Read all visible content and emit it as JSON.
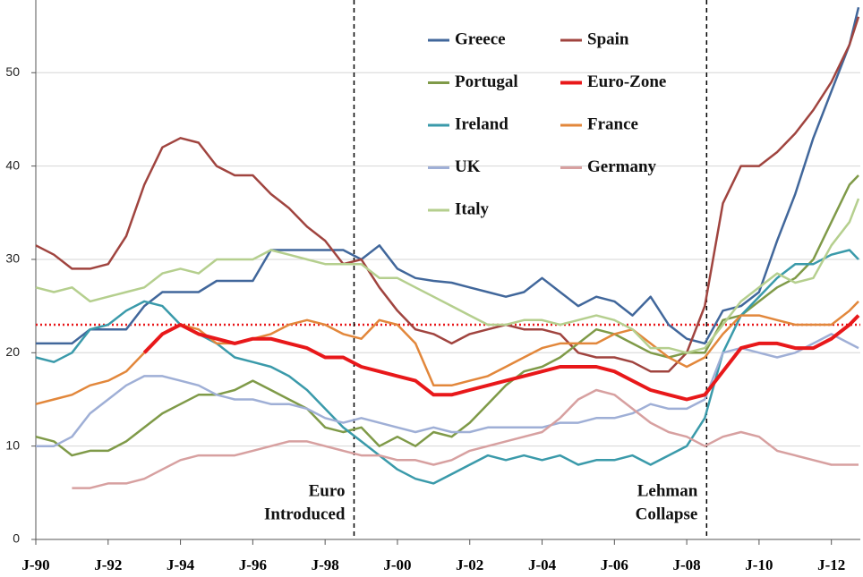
{
  "chart_data": {
    "type": "line",
    "x": [
      1990,
      1990.5,
      1991,
      1991.5,
      1992,
      1992.5,
      1993,
      1993.5,
      1994,
      1994.5,
      1995,
      1995.5,
      1996,
      1996.5,
      1997,
      1997.5,
      1998,
      1998.5,
      1999,
      1999.5,
      2000,
      2000.5,
      2001,
      2001.5,
      2002,
      2002.5,
      2003,
      2003.5,
      2004,
      2004.5,
      2005,
      2005.5,
      2006,
      2006.5,
      2007,
      2007.5,
      2008,
      2008.5,
      2009,
      2009.5,
      2010,
      2010.5,
      2011,
      2011.5,
      2012,
      2012.5,
      2012.75
    ],
    "series": [
      {
        "name": "Greece",
        "color": "#41679b",
        "values": [
          21,
          21,
          21,
          22.5,
          22.5,
          22.5,
          25,
          26.5,
          26.5,
          26.5,
          27.7,
          27.7,
          27.7,
          31,
          31,
          31,
          31,
          31,
          30,
          31.5,
          29,
          28,
          27.7,
          27.5,
          27,
          26.5,
          26,
          26.5,
          28,
          26.5,
          25,
          26,
          25.5,
          24,
          26,
          23,
          21.5,
          21,
          24.5,
          25,
          26.5,
          32,
          37,
          43,
          48,
          53,
          57
        ]
      },
      {
        "name": "Spain",
        "color": "#a0443f",
        "values": [
          31.5,
          30.5,
          29,
          29,
          29.5,
          32.5,
          38,
          42,
          43,
          42.5,
          40,
          39,
          39,
          37,
          35.5,
          33.5,
          32,
          29.5,
          30,
          27,
          24.5,
          22.5,
          22,
          21,
          22,
          22.5,
          23,
          22.5,
          22.5,
          22,
          20,
          19.5,
          19.5,
          19,
          18,
          18,
          20,
          25,
          36,
          40,
          40,
          41.5,
          43.5,
          46,
          49,
          53,
          56
        ]
      },
      {
        "name": "Portugal",
        "color": "#7f9a48",
        "values": [
          11,
          10.5,
          9,
          9.5,
          9.5,
          10.5,
          12,
          13.5,
          14.5,
          15.5,
          15.5,
          16,
          17,
          16,
          15,
          14,
          12,
          11.5,
          12,
          10,
          11,
          10,
          11.5,
          11,
          12.5,
          14.5,
          16.5,
          18,
          18.5,
          19.5,
          21,
          22.5,
          22,
          21,
          20,
          19.5,
          20,
          20,
          23.5,
          24,
          25.5,
          27,
          28,
          30,
          34,
          38,
          39
        ]
      },
      {
        "name": "Euro-Zone",
        "color": "#e8181a",
        "values": [
          null,
          null,
          null,
          null,
          null,
          null,
          20,
          22,
          23,
          22,
          21.5,
          21,
          21.5,
          21.5,
          21,
          20.5,
          19.5,
          19.5,
          18.5,
          18,
          17.5,
          17,
          15.5,
          15.5,
          16,
          16.5,
          17,
          17.5,
          18,
          18.5,
          18.5,
          18.5,
          18,
          17,
          16,
          15.5,
          15,
          15.5,
          18,
          20.5,
          21,
          21,
          20.5,
          20.5,
          21.5,
          23,
          24
        ]
      },
      {
        "name": "Ireland",
        "color": "#3a9aaa",
        "values": [
          19.5,
          19,
          20,
          22.5,
          23,
          24.5,
          25.5,
          25,
          23,
          22,
          21,
          19.5,
          19,
          18.5,
          17.5,
          16,
          14,
          12,
          10.5,
          9,
          7.5,
          6.5,
          6,
          7,
          8,
          9,
          8.5,
          9,
          8.5,
          9,
          8,
          8.5,
          8.5,
          9,
          8,
          9,
          10,
          13,
          20,
          24,
          26,
          28,
          29.5,
          29.5,
          30.5,
          31,
          30
        ]
      },
      {
        "name": "France",
        "color": "#e2873b",
        "values": [
          14.5,
          15,
          15.5,
          16.5,
          17,
          18,
          20,
          22,
          23,
          22.5,
          21,
          21,
          21.5,
          22,
          23,
          23.5,
          23,
          22,
          21.5,
          23.5,
          23,
          21,
          16.5,
          16.5,
          17,
          17.5,
          18.5,
          19.5,
          20.5,
          21,
          21,
          21,
          22,
          22.5,
          21,
          19.5,
          18.5,
          19.5,
          22,
          24,
          24,
          23.5,
          23,
          23,
          23,
          24.5,
          25.5
        ]
      },
      {
        "name": "UK",
        "color": "#9fafd6",
        "values": [
          10,
          10,
          11,
          13.5,
          15,
          16.5,
          17.5,
          17.5,
          17,
          16.5,
          15.5,
          15,
          15,
          14.5,
          14.5,
          14,
          13,
          12.5,
          13,
          12.5,
          12,
          11.5,
          12,
          11.5,
          11.5,
          12,
          12,
          12,
          12,
          12.5,
          12.5,
          13,
          13,
          13.5,
          14.5,
          14,
          14,
          15,
          20,
          20.5,
          20,
          19.5,
          20,
          21,
          22,
          21,
          20.5
        ]
      },
      {
        "name": "Germany",
        "color": "#d7a0a0",
        "values": [
          null,
          null,
          5.5,
          5.5,
          6,
          6,
          6.5,
          7.5,
          8.5,
          9,
          9,
          9,
          9.5,
          10,
          10.5,
          10.5,
          10,
          9.5,
          9,
          9,
          8.5,
          8.5,
          8,
          8.5,
          9.5,
          10,
          10.5,
          11,
          11.5,
          13,
          15,
          16,
          15.5,
          14,
          12.5,
          11.5,
          11,
          10,
          11,
          11.5,
          11,
          9.5,
          9,
          8.5,
          8,
          8,
          8
        ]
      },
      {
        "name": "Italy",
        "color": "#b5cf8e",
        "values": [
          27,
          26.5,
          27,
          25.5,
          26,
          26.5,
          27,
          28.5,
          29,
          28.5,
          30,
          30,
          30,
          31,
          30.5,
          30,
          29.5,
          29.5,
          29.5,
          28,
          28,
          27,
          26,
          25,
          24,
          23,
          23,
          23.5,
          23.5,
          23,
          23.5,
          24,
          23.5,
          22.5,
          20.5,
          20.5,
          20,
          20.5,
          23,
          25.5,
          27,
          28.5,
          27.5,
          28,
          31.5,
          34,
          36.5
        ]
      }
    ],
    "xlim": [
      1990,
      2012.8
    ],
    "xticks": [
      {
        "value": 1990,
        "label": "J-90"
      },
      {
        "value": 1992,
        "label": "J-92"
      },
      {
        "value": 1994,
        "label": "J-94"
      },
      {
        "value": 1996,
        "label": "J-96"
      },
      {
        "value": 1998,
        "label": "J-98"
      },
      {
        "value": 2000,
        "label": "J-00"
      },
      {
        "value": 2002,
        "label": "J-02"
      },
      {
        "value": 2004,
        "label": "J-04"
      },
      {
        "value": 2006,
        "label": "J-06"
      },
      {
        "value": 2008,
        "label": "J-08"
      },
      {
        "value": 2010,
        "label": "J-10"
      },
      {
        "value": 2012,
        "label": "J-12"
      }
    ],
    "ylim": [
      0,
      57.5
    ],
    "yticks": [
      0,
      10,
      20,
      30,
      40,
      50
    ],
    "grid": true,
    "legend": "top-center",
    "hline": {
      "value": 23,
      "color": "#e8181a"
    },
    "annotations": [
      {
        "x": 1998.8,
        "text": [
          "Euro",
          "Introduced"
        ]
      },
      {
        "x": 2008.55,
        "text": [
          "Lehman",
          "Collapse"
        ]
      }
    ]
  }
}
